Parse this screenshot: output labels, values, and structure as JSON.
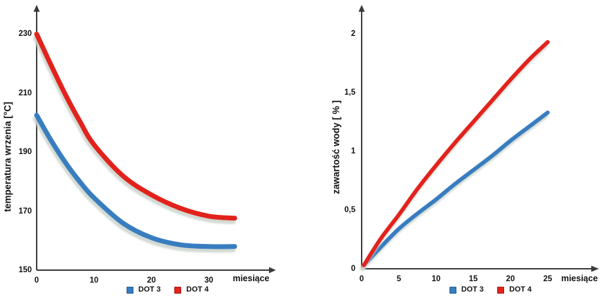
{
  "page": {
    "background": "#ffffff"
  },
  "colors": {
    "dot3_blue": "#377dc0",
    "dot4_red": "#e2231a",
    "axis": "#3b3b3e",
    "text": "#121212",
    "curve_shadow": "#ccd5ce"
  },
  "chart_data": [
    {
      "id": "boiling-temperature",
      "type": "line",
      "title": "",
      "ylabel": "temperatura wrzenia [°C]",
      "xlabel": "miesiące",
      "xlim": [
        0,
        41
      ],
      "ylim": [
        150,
        240
      ],
      "grid": false,
      "legend_position": "bottom",
      "x_ticks": [
        0,
        10,
        20,
        30
      ],
      "x_tick_labels": [
        "0",
        "10",
        "20",
        "30"
      ],
      "y_ticks": [
        150,
        170,
        190,
        210,
        230
      ],
      "y_tick_labels": [
        "150",
        "170",
        "190",
        "210",
        "230"
      ],
      "series": [
        {
          "name": "DOT 3",
          "color": "#377dc0",
          "x": [
            0,
            2.5,
            5,
            7.5,
            10,
            15,
            20,
            25,
            30,
            34.5
          ],
          "values": [
            202.5,
            194,
            186.5,
            180,
            174.5,
            166,
            161,
            158.6,
            158,
            158
          ]
        },
        {
          "name": "DOT 4",
          "color": "#e2231a",
          "x": [
            0,
            2.5,
            5,
            7.5,
            10,
            15,
            20,
            25,
            30,
            34.5
          ],
          "values": [
            230,
            219.5,
            209.5,
            200.5,
            192.5,
            182,
            175.5,
            171,
            168.3,
            167.6
          ]
        }
      ]
    },
    {
      "id": "water-content",
      "type": "line",
      "title": "",
      "ylabel": "zawartość wody [ % ]",
      "xlabel": "miesiące",
      "xlim": [
        0,
        31
      ],
      "ylim": [
        0,
        2.25
      ],
      "grid": false,
      "legend_position": "bottom",
      "x_ticks": [
        0,
        5,
        10,
        15,
        20,
        25
      ],
      "x_tick_labels": [
        "0",
        "5",
        "10",
        "15",
        "20",
        "25"
      ],
      "y_ticks": [
        0,
        0.5,
        1,
        1.5,
        2
      ],
      "y_tick_labels": [
        "0",
        "0,5",
        "1",
        "1,5",
        "2"
      ],
      "series": [
        {
          "name": "DOT 3",
          "color": "#377dc0",
          "x": [
            0.3,
            2.5,
            5,
            7.5,
            10,
            12.5,
            15,
            17.5,
            20,
            22.5,
            25
          ],
          "values": [
            0.03,
            0.18,
            0.34,
            0.47,
            0.59,
            0.72,
            0.84,
            0.96,
            1.09,
            1.21,
            1.33
          ]
        },
        {
          "name": "DOT 4",
          "color": "#e2231a",
          "x": [
            0.3,
            2.5,
            5,
            7.5,
            10,
            12.5,
            15,
            17.5,
            20,
            22.5,
            25
          ],
          "values": [
            0.03,
            0.25,
            0.46,
            0.68,
            0.88,
            1.07,
            1.25,
            1.43,
            1.61,
            1.78,
            1.93
          ]
        }
      ]
    }
  ]
}
